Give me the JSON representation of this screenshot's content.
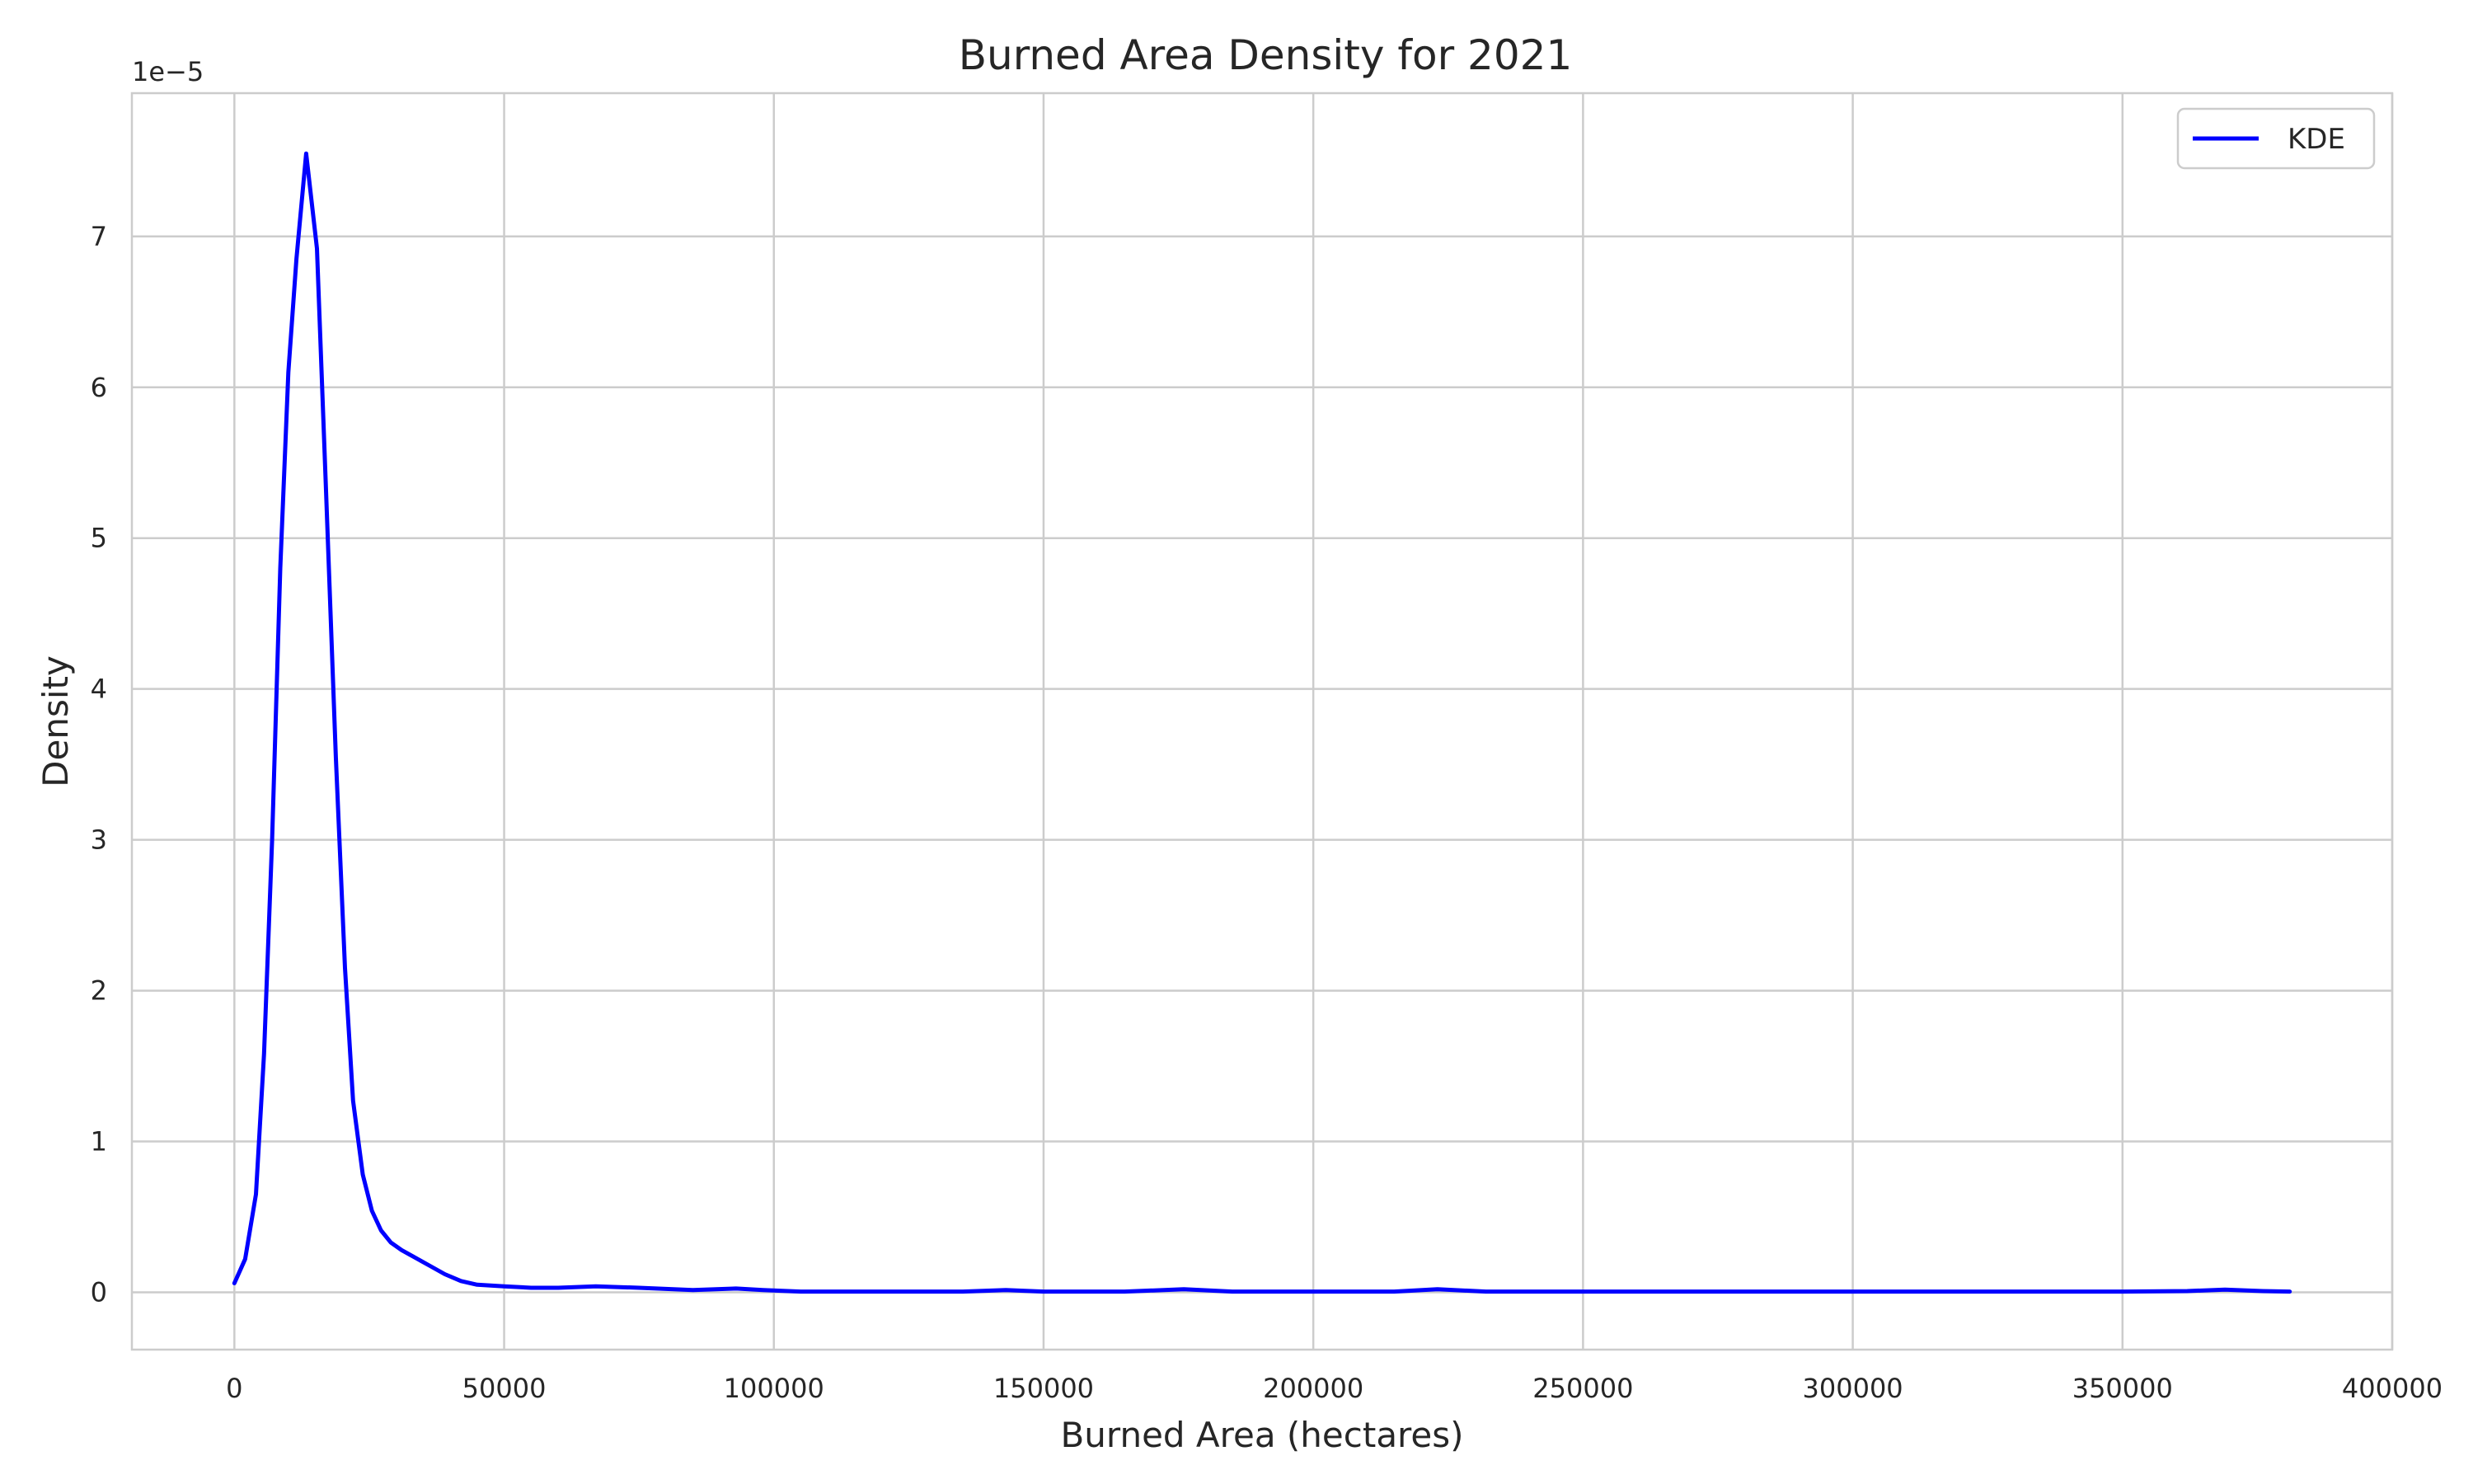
{
  "chart_data": {
    "type": "line",
    "title": "Burned Area Density for 2021",
    "xlabel": "Burned Area (hectares)",
    "ylabel": "Density",
    "y_offset_label": "1e−5",
    "y_scale_multiplier": 1e-05,
    "xlim": [
      -19000,
      400000
    ],
    "ylim": [
      -0.38,
      7.95
    ],
    "x_ticks": [
      0,
      50000,
      100000,
      150000,
      200000,
      250000,
      300000,
      350000,
      400000
    ],
    "x_tick_labels": [
      "0",
      "50000",
      "100000",
      "150000",
      "200000",
      "250000",
      "300000",
      "350000",
      "400000"
    ],
    "y_ticks": [
      0,
      1,
      2,
      3,
      4,
      5,
      6,
      7
    ],
    "y_tick_labels": [
      "0",
      "1",
      "2",
      "3",
      "4",
      "5",
      "6",
      "7"
    ],
    "grid": true,
    "legend_position": "top-right",
    "series": [
      {
        "name": "KDE",
        "color": "#0000ff",
        "x": [
          0,
          2000,
          4000,
          5500,
          7000,
          8500,
          10000,
          11500,
          13300,
          15300,
          17000,
          18800,
          20500,
          22000,
          23800,
          25500,
          27200,
          29000,
          31000,
          33000,
          36000,
          39000,
          42000,
          45000,
          50000,
          55000,
          60000,
          67000,
          75000,
          85000,
          93000,
          98000,
          105000,
          120000,
          135000,
          143000,
          150000,
          165000,
          176000,
          185000,
          200000,
          215000,
          223000,
          232000,
          250000,
          300000,
          350000,
          362000,
          369000,
          376000,
          381000
        ],
        "y": [
          0.06,
          0.22,
          0.65,
          1.58,
          3.0,
          4.8,
          6.1,
          6.85,
          7.55,
          6.92,
          5.3,
          3.55,
          2.15,
          1.27,
          0.78,
          0.54,
          0.41,
          0.33,
          0.28,
          0.24,
          0.18,
          0.12,
          0.075,
          0.05,
          0.04,
          0.03,
          0.03,
          0.04,
          0.03,
          0.015,
          0.025,
          0.015,
          0.005,
          0.005,
          0.005,
          0.015,
          0.005,
          0.005,
          0.02,
          0.005,
          0.005,
          0.005,
          0.02,
          0.005,
          0.005,
          0.005,
          0.005,
          0.008,
          0.018,
          0.008,
          0.005
        ]
      }
    ]
  }
}
